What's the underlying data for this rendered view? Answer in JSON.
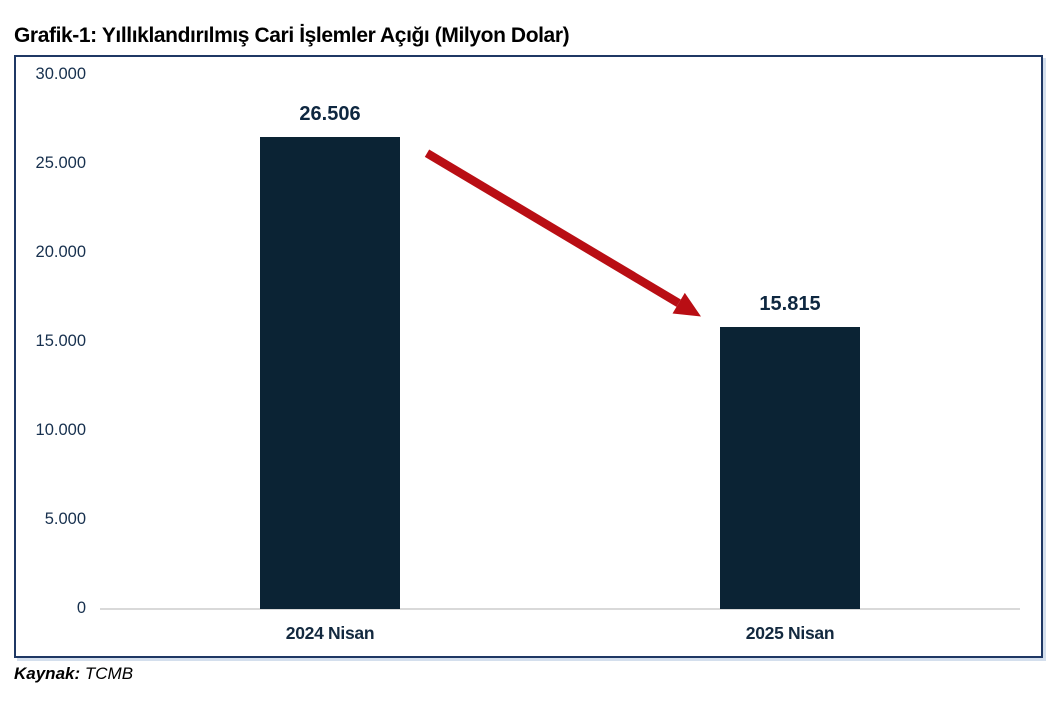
{
  "title": "Grafik-1: Yıllıklandırılmış Cari İşlemler Açığı (Milyon Dolar)",
  "source": {
    "label": "Kaynak:",
    "value": "TCMB"
  },
  "chart_data": {
    "type": "bar",
    "title": "Grafik-1: Yıllıklandırılmış Cari İşlemler Açığı (Milyon Dolar)",
    "categories": [
      "2024 Nisan",
      "2025 Nisan"
    ],
    "values": [
      26506,
      15815
    ],
    "value_labels": [
      "26.506",
      "15.815"
    ],
    "ylim": [
      0,
      30000
    ],
    "yticks": [
      30000,
      25000,
      20000,
      15000,
      10000,
      5000,
      0
    ],
    "ytick_labels": [
      "30.000",
      "25.000",
      "20.000",
      "15.000",
      "10.000",
      "5.000",
      "0"
    ],
    "xlabel": "",
    "ylabel": "",
    "grid": false,
    "legend": false,
    "bar_color": "#0b2334",
    "annotation": {
      "type": "arrow",
      "meaning": "decline-from-2024-to-2025",
      "color": "#b90e14"
    }
  },
  "colors": {
    "frame_border": "#1f3864",
    "baseline": "#d9d9d9",
    "bar": "#0b2334",
    "axis_text": "#17304e",
    "value_text": "#0e2740",
    "arrow": "#b90e14"
  }
}
